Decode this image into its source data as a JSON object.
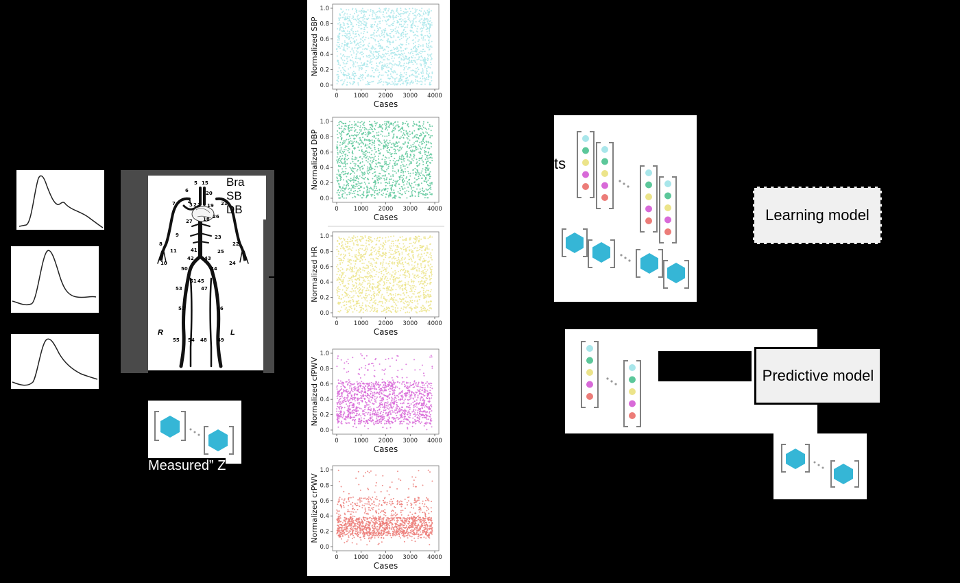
{
  "body_diagram": {
    "side_left": "R",
    "side_right": "L",
    "segment_numbers": [
      "5",
      "15",
      "6",
      "20",
      "21",
      "7",
      "4",
      "3",
      "2",
      "1",
      "19",
      "26",
      "27",
      "18",
      "9",
      "23",
      "8",
      "22",
      "11",
      "25",
      "10",
      "24",
      "41",
      "42",
      "43",
      "50",
      "44",
      "51",
      "45",
      "47",
      "53",
      "52",
      "46",
      "55",
      "54",
      "48",
      "49"
    ],
    "side_text": [
      "Bra",
      "SB",
      "DB"
    ]
  },
  "labels": {
    "bottom_measured": "Measured” Z",
    "training_sets": "ts",
    "learning_model": "Learning model",
    "predictive_model": "Predictive model"
  },
  "colors": {
    "sbp": "#a8e6ea",
    "dbp": "#5cc79a",
    "hr": "#ece48a",
    "cfpwv": "#d86ad8",
    "crpwv": "#ec7c78",
    "hexagon": "#35b6d6",
    "bracket": "#808080"
  },
  "icons": [
    "hexagon-icon",
    "dot-column-icon",
    "bracket-icon"
  ],
  "chart_data": [
    {
      "type": "scatter",
      "title": "",
      "xlabel": "Cases",
      "ylabel": "Normalized SBP",
      "xlim": [
        0,
        4000
      ],
      "ylim": [
        0,
        1
      ],
      "xticks": [
        "0",
        "1000",
        "2000",
        "3000",
        "4000"
      ],
      "yticks": [
        "0.0",
        "0.2",
        "0.4",
        "0.6",
        "0.8",
        "1.0"
      ],
      "n_points": 4000,
      "distribution": "uniform 0–1",
      "color": "#a8e6ea"
    },
    {
      "type": "scatter",
      "title": "",
      "xlabel": "Cases",
      "ylabel": "Normalized DBP",
      "xlim": [
        0,
        4000
      ],
      "ylim": [
        0,
        1
      ],
      "xticks": [
        "0",
        "1000",
        "2000",
        "3000",
        "4000"
      ],
      "yticks": [
        "0.0",
        "0.2",
        "0.4",
        "0.6",
        "0.8",
        "1.0"
      ],
      "n_points": 4000,
      "distribution": "uniform 0–1",
      "color": "#5cc79a"
    },
    {
      "type": "scatter",
      "title": "",
      "xlabel": "Cases",
      "ylabel": "Normalized HR",
      "xlim": [
        0,
        4000
      ],
      "ylim": [
        0,
        1
      ],
      "xticks": [
        "0",
        "1000",
        "2000",
        "3000",
        "4000"
      ],
      "yticks": [
        "0.0",
        "0.2",
        "0.4",
        "0.6",
        "0.8",
        "1.0"
      ],
      "n_points": 4000,
      "distribution": "uniform 0–1",
      "color": "#ece48a"
    },
    {
      "type": "scatter",
      "title": "",
      "xlabel": "Cases",
      "ylabel": "Normalized cfPWV",
      "xlim": [
        0,
        4000
      ],
      "ylim": [
        0,
        1
      ],
      "xticks": [
        "0",
        "1000",
        "2000",
        "3000",
        "4000"
      ],
      "yticks": [
        "0.0",
        "0.2",
        "0.4",
        "0.6",
        "0.8",
        "1.0"
      ],
      "n_points": 4000,
      "distribution": "concentrated 0.1–0.6",
      "color": "#d86ad8"
    },
    {
      "type": "scatter",
      "title": "",
      "xlabel": "Cases",
      "ylabel": "Normalized crPWV",
      "xlim": [
        0,
        4000
      ],
      "ylim": [
        0,
        1
      ],
      "xticks": [
        "0",
        "1000",
        "2000",
        "3000",
        "4000"
      ],
      "yticks": [
        "0.0",
        "0.2",
        "0.4",
        "0.6",
        "0.8",
        "1.0"
      ],
      "n_points": 4000,
      "distribution": "dense band 0.15–0.35, sparse above",
      "color": "#ec7c78"
    }
  ]
}
